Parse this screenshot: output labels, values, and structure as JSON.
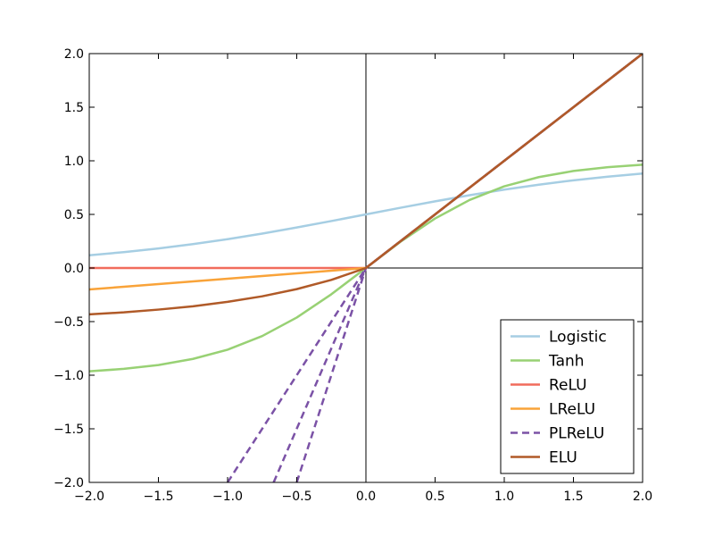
{
  "chart_data": {
    "type": "line",
    "title": "",
    "xlabel": "",
    "ylabel": "",
    "xlim": [
      -2.0,
      2.0
    ],
    "ylim": [
      -2.0,
      2.0
    ],
    "grid": false,
    "legend_position": "lower-right",
    "x_ticks": [
      "−2.0",
      "−1.5",
      "−1.0",
      "−0.5",
      "0.0",
      "0.5",
      "1.0",
      "1.5",
      "2.0"
    ],
    "x_tick_values": [
      -2.0,
      -1.5,
      -1.0,
      -0.5,
      0.0,
      0.5,
      1.0,
      1.5,
      2.0
    ],
    "y_ticks": [
      "−2.0",
      "−1.5",
      "−1.0",
      "−0.5",
      "0.0",
      "0.5",
      "1.0",
      "1.5",
      "2.0"
    ],
    "y_tick_values": [
      -2.0,
      -1.5,
      -1.0,
      -0.5,
      0.0,
      0.5,
      1.0,
      1.5,
      2.0
    ],
    "x": [
      -2.0,
      -1.75,
      -1.5,
      -1.25,
      -1.0,
      -0.75,
      -0.5,
      -0.25,
      0.0,
      0.25,
      0.5,
      0.75,
      1.0,
      1.25,
      1.5,
      1.75,
      2.0
    ],
    "series": [
      {
        "name": "Logistic",
        "color": "#a6cee3",
        "dash": false,
        "values": [
          0.119,
          0.148,
          0.182,
          0.223,
          0.269,
          0.321,
          0.378,
          0.438,
          0.5,
          0.562,
          0.622,
          0.679,
          0.731,
          0.777,
          0.818,
          0.852,
          0.881
        ]
      },
      {
        "name": "Tanh",
        "color": "#98d174",
        "dash": false,
        "values": [
          -0.964,
          -0.941,
          -0.905,
          -0.848,
          -0.762,
          -0.635,
          -0.462,
          -0.245,
          0.0,
          0.245,
          0.462,
          0.635,
          0.762,
          0.848,
          0.905,
          0.941,
          0.964
        ]
      },
      {
        "name": "ReLU",
        "color": "#f16c5c",
        "dash": false,
        "values": [
          0.0,
          0.0,
          0.0,
          0.0,
          0.0,
          0.0,
          0.0,
          0.0,
          0.0,
          0.25,
          0.5,
          0.75,
          1.0,
          1.25,
          1.5,
          1.75,
          2.0
        ]
      },
      {
        "name": "LReLU",
        "color": "#f9a339",
        "dash": false,
        "values": [
          -0.2,
          -0.175,
          -0.15,
          -0.125,
          -0.1,
          -0.075,
          -0.05,
          -0.025,
          0.0,
          0.25,
          0.5,
          0.75,
          1.0,
          1.25,
          1.5,
          1.75,
          2.0
        ]
      },
      {
        "name": "PLReLU",
        "color": "#7b52a6",
        "dash": true,
        "lines": [
          {
            "x": [
              -1.0,
              0.0,
              2.0
            ],
            "values": [
              -2.0,
              0.0,
              2.0
            ]
          },
          {
            "x": [
              -0.667,
              0.0,
              2.0
            ],
            "values": [
              -2.0,
              0.0,
              2.0
            ]
          },
          {
            "x": [
              -0.5,
              0.0,
              2.0
            ],
            "values": [
              -2.0,
              0.0,
              2.0
            ]
          }
        ]
      },
      {
        "name": "ELU",
        "color": "#b05a28",
        "dash": false,
        "values": [
          -0.432,
          -0.414,
          -0.388,
          -0.357,
          -0.316,
          -0.264,
          -0.197,
          -0.111,
          0.0,
          0.25,
          0.5,
          0.75,
          1.0,
          1.25,
          1.5,
          1.75,
          2.0
        ]
      }
    ]
  }
}
